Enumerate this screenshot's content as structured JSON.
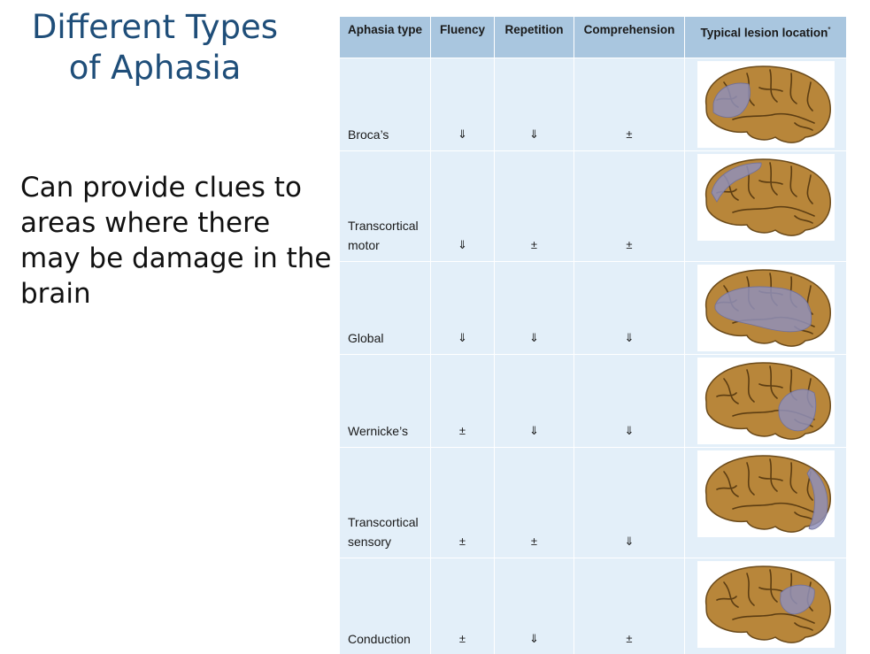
{
  "title": {
    "line1": "Different Types",
    "line2": "of Aphasia"
  },
  "body_text": "Can provide clues to areas where there may be damage in the brain",
  "table": {
    "headers": {
      "type": "Aphasia type",
      "fluency": "Fluency",
      "repetition": "Repetition",
      "comprehension": "Comprehension",
      "lesion": "Typical lesion location",
      "lesion_note": "*"
    },
    "rows": [
      {
        "type": "Broca’s",
        "fluency": "⇓",
        "repetition": "⇓",
        "comprehension": "±",
        "lesion_image": "brain-broca-lesion"
      },
      {
        "type": "Transcortical motor",
        "fluency": "⇓",
        "repetition": "±",
        "comprehension": "±",
        "lesion_image": "brain-transcortical-motor-lesion"
      },
      {
        "type": "Global",
        "fluency": "⇓",
        "repetition": "⇓",
        "comprehension": "⇓",
        "lesion_image": "brain-global-lesion"
      },
      {
        "type": "Wernicke’s",
        "fluency": "±",
        "repetition": "⇓",
        "comprehension": "⇓",
        "lesion_image": "brain-wernicke-lesion"
      },
      {
        "type": "Transcortical sensory",
        "fluency": "±",
        "repetition": "±",
        "comprehension": "⇓",
        "lesion_image": "brain-transcortical-sensory-lesion"
      },
      {
        "type": "Conduction",
        "fluency": "±",
        "repetition": "⇓",
        "comprehension": "±",
        "lesion_image": "brain-conduction-lesion"
      }
    ]
  },
  "colors": {
    "title": "#1f4e79",
    "header_bg": "#a9c6df",
    "cell_bg": "#e3eff9",
    "brain": "#b8863a",
    "lesion": "#8f8fb8"
  }
}
